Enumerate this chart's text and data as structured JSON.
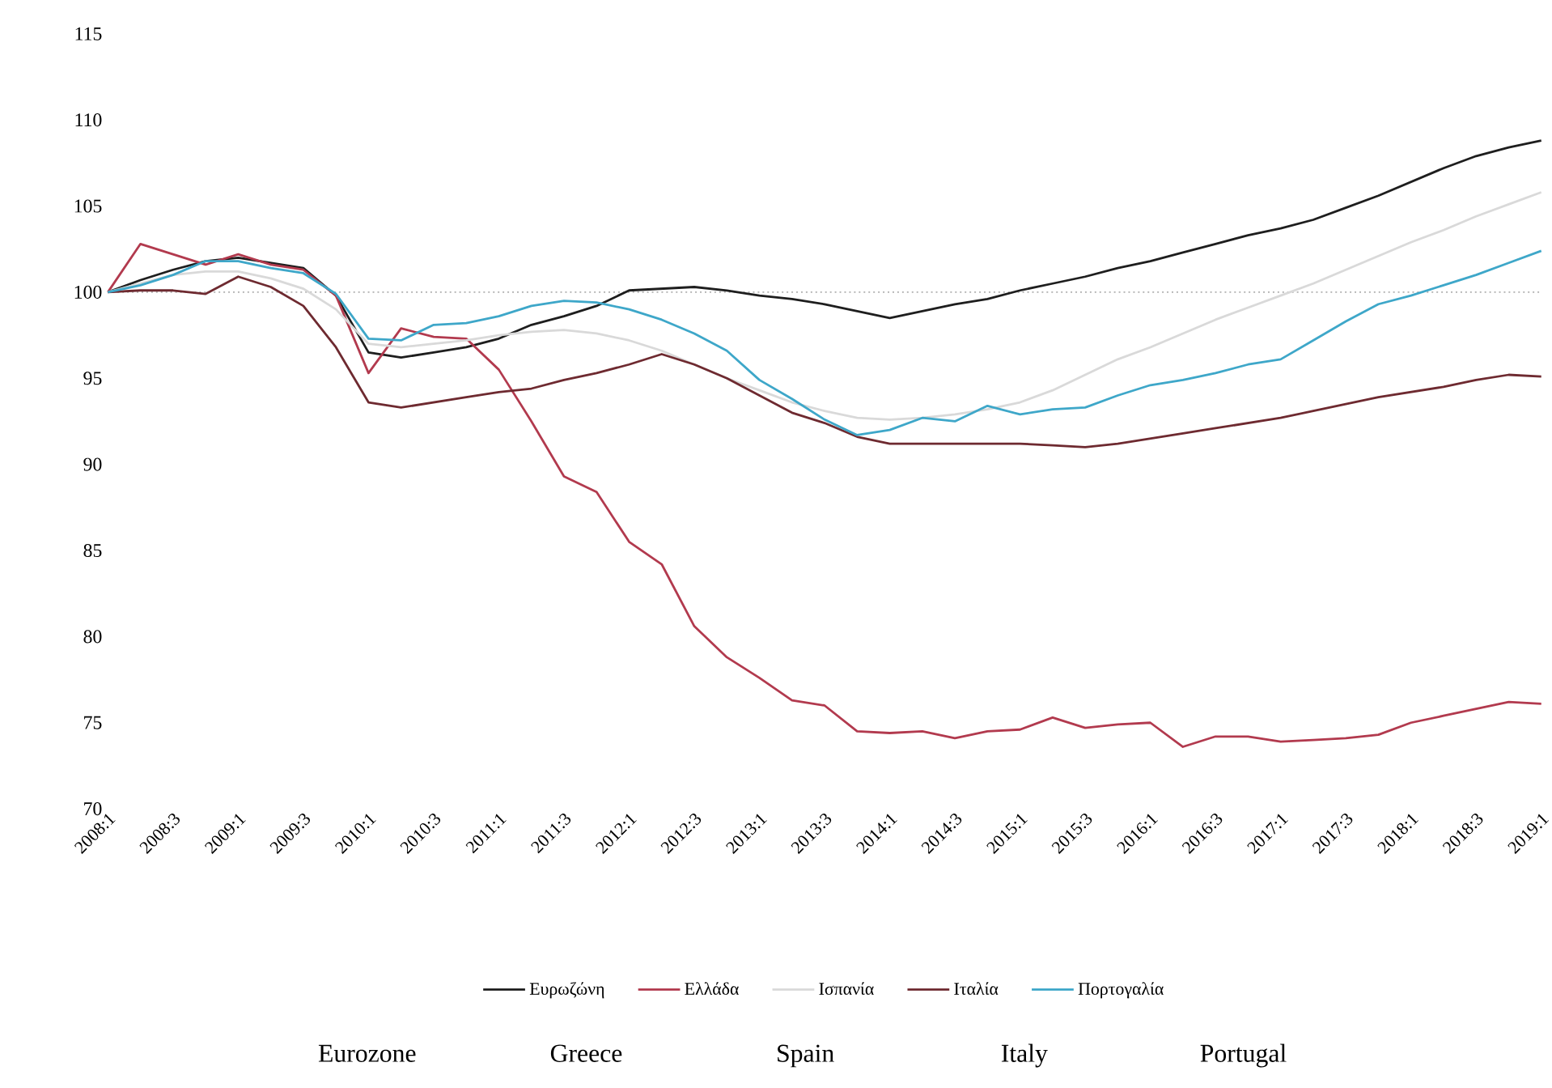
{
  "chart_data": {
    "type": "line",
    "categories": [
      "2008:1",
      null,
      "2008:3",
      null,
      "2009:1",
      null,
      "2009:3",
      null,
      "2010:1",
      null,
      "2010:3",
      null,
      "2011:1",
      null,
      "2011:3",
      null,
      "2012:1",
      null,
      "2012:3",
      null,
      "2013:1",
      null,
      "2013:3",
      null,
      "2014:1",
      null,
      "2014:3",
      null,
      "2015:1",
      null,
      "2015:3",
      null,
      "2016:1",
      null,
      "2016:3",
      null,
      "2017:1",
      null,
      "2017:3",
      null,
      "2018:1",
      null,
      "2018:3",
      null,
      "2019:1"
    ],
    "series": [
      {
        "name": "Ευρωζώνη",
        "color": "#1e1e1e",
        "values": [
          100,
          100.7,
          101.3,
          101.8,
          102.0,
          101.7,
          101.4,
          99.8,
          96.5,
          96.2,
          96.5,
          96.8,
          97.3,
          98.1,
          98.6,
          99.2,
          100.1,
          100.2,
          100.3,
          100.1,
          99.8,
          99.6,
          99.3,
          98.9,
          98.5,
          98.9,
          99.3,
          99.6,
          100.1,
          100.5,
          100.9,
          101.4,
          101.8,
          102.3,
          102.8,
          103.3,
          103.7,
          104.2,
          104.9,
          105.6,
          106.4,
          107.2,
          107.9,
          108.4,
          108.8
        ]
      },
      {
        "name": "Ελλάδα",
        "color": "#b23a4e",
        "values": [
          100,
          102.8,
          102.2,
          101.6,
          102.2,
          101.6,
          101.3,
          99.8,
          95.3,
          97.9,
          97.4,
          97.3,
          95.5,
          92.5,
          89.3,
          88.4,
          85.5,
          84.2,
          80.6,
          78.8,
          77.6,
          76.3,
          76.0,
          74.5,
          74.4,
          74.5,
          74.1,
          74.5,
          74.6,
          75.3,
          74.7,
          74.9,
          75.0,
          73.6,
          74.2,
          74.2,
          73.9,
          74.0,
          74.1,
          74.3,
          75.0,
          75.4,
          75.8,
          76.2,
          76.1
        ]
      },
      {
        "name": "Ισπανία",
        "color": "#d9d9d9",
        "values": [
          100,
          100.5,
          101.0,
          101.2,
          101.2,
          100.8,
          100.2,
          99.0,
          97.0,
          96.8,
          97.0,
          97.2,
          97.5,
          97.7,
          97.8,
          97.6,
          97.2,
          96.6,
          95.8,
          95.0,
          94.3,
          93.6,
          93.1,
          92.7,
          92.6,
          92.7,
          92.9,
          93.2,
          93.6,
          94.3,
          95.2,
          96.1,
          96.8,
          97.6,
          98.4,
          99.1,
          99.8,
          100.5,
          101.3,
          102.1,
          102.9,
          103.6,
          104.4,
          105.1,
          105.8
        ]
      },
      {
        "name": "Ιταλία",
        "color": "#6e2a30",
        "values": [
          100,
          100.1,
          100.1,
          99.9,
          100.9,
          100.3,
          99.2,
          96.8,
          93.6,
          93.3,
          93.6,
          93.9,
          94.2,
          94.4,
          94.9,
          95.3,
          95.8,
          96.4,
          95.8,
          95.0,
          94.0,
          93.0,
          92.4,
          91.6,
          91.2,
          91.2,
          91.2,
          91.2,
          91.2,
          91.1,
          91.0,
          91.2,
          91.5,
          91.8,
          92.1,
          92.4,
          92.7,
          93.1,
          93.5,
          93.9,
          94.2,
          94.5,
          94.9,
          95.2,
          95.1
        ]
      },
      {
        "name": "Πορτογαλία",
        "color": "#3ea7c9",
        "values": [
          100,
          100.4,
          101.0,
          101.8,
          101.8,
          101.4,
          101.1,
          99.9,
          97.3,
          97.2,
          98.1,
          98.2,
          98.6,
          99.2,
          99.5,
          99.4,
          99.0,
          98.4,
          97.6,
          96.6,
          94.9,
          93.8,
          92.6,
          91.7,
          92.0,
          92.7,
          92.5,
          93.4,
          92.9,
          93.2,
          93.3,
          94.0,
          94.6,
          94.9,
          95.3,
          95.8,
          96.1,
          97.2,
          98.3,
          99.3,
          99.8,
          100.4,
          101.0,
          101.7,
          102.4
        ]
      }
    ],
    "ylim": [
      70,
      115
    ],
    "yticks": [
      70,
      75,
      80,
      85,
      90,
      95,
      100,
      105,
      110,
      115
    ],
    "ref_lines": [
      {
        "axis": "y",
        "value": 100,
        "color": "#b0b0b0",
        "line_style": "dotted"
      }
    ],
    "line_style": "solid",
    "legend": "bottom",
    "annotations": [
      "Eurozone",
      "Greece",
      "Spain",
      "Italy",
      "Portugal"
    ]
  }
}
